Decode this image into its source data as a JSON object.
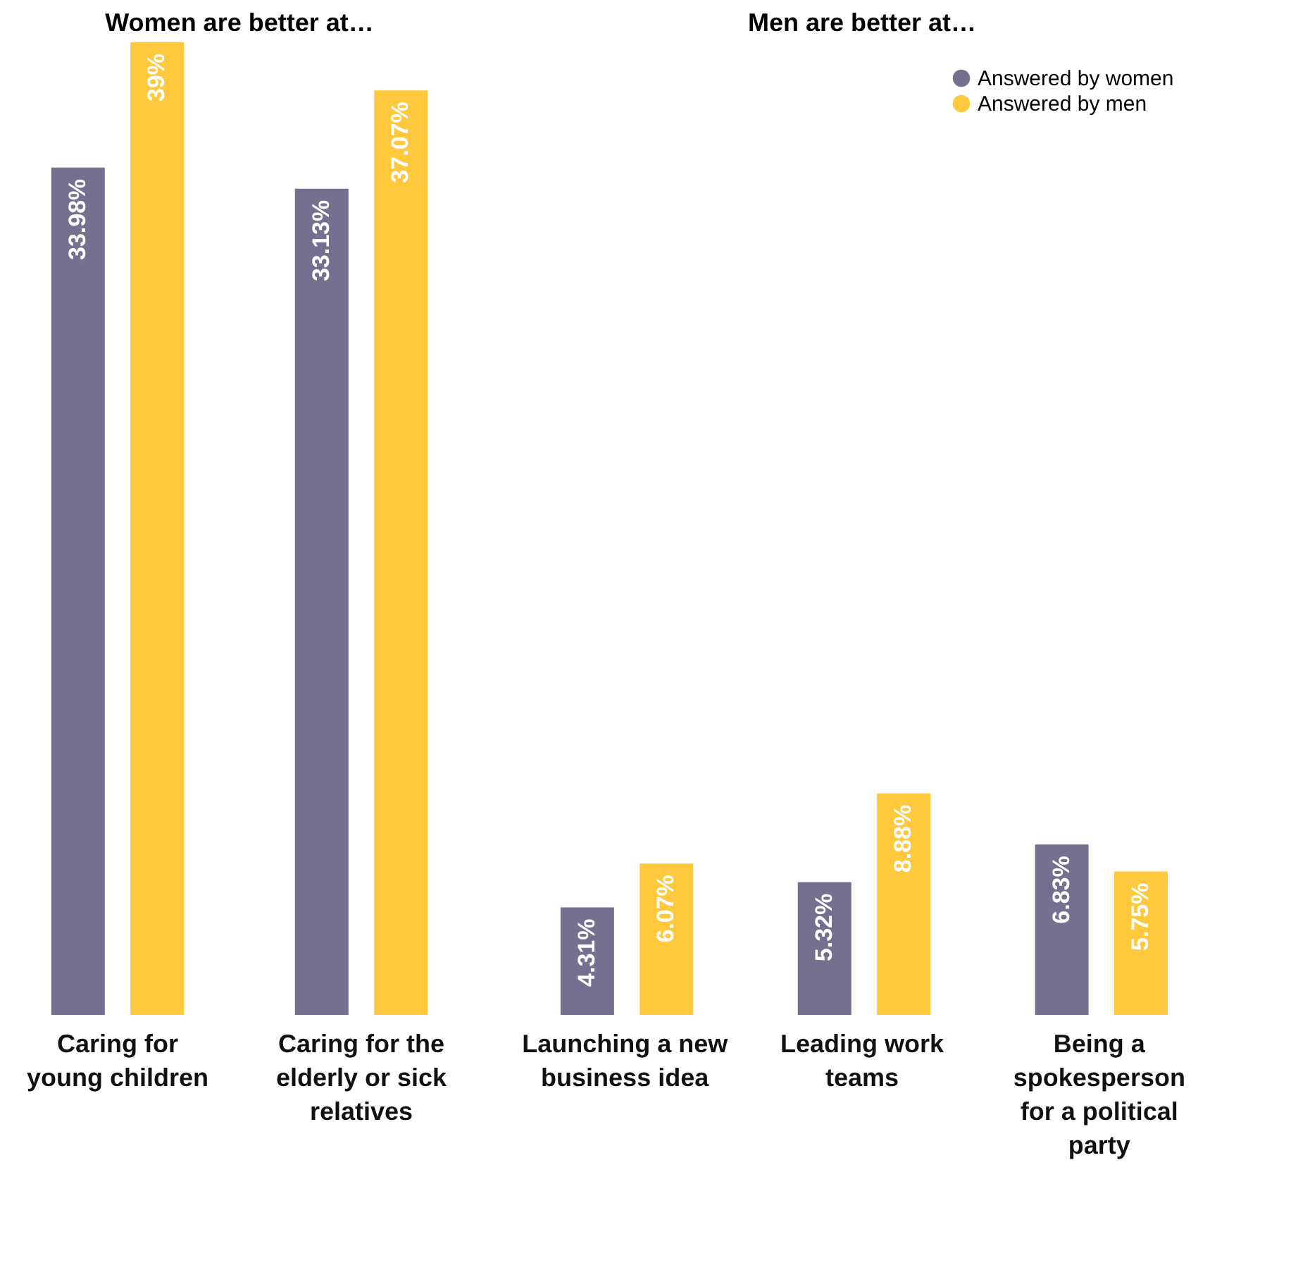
{
  "chart_data": [
    {
      "type": "bar",
      "title": "Women are better at…",
      "categories": [
        "Caring for young children",
        "Caring for the elderly or sick relatives"
      ],
      "series": [
        {
          "color": "#75708f",
          "values": [
            33.98,
            33.13
          ],
          "value_labels": [
            "33.98%",
            "33.13%"
          ]
        },
        {
          "color": "#ffc83d",
          "values": [
            39,
            37.07
          ],
          "value_labels": [
            "39%",
            "37.07%"
          ]
        }
      ]
    },
    {
      "type": "bar",
      "title": "Men are better at…",
      "categories": [
        "Launching a new business idea",
        "Leading work teams",
        "Being a spokesperson for a political party"
      ],
      "legend": "top right",
      "series": [
        {
          "name": "Answered by women",
          "color": "#75708f",
          "values": [
            4.31,
            5.32,
            6.83
          ],
          "value_labels": [
            "4.31%",
            "5.32%",
            "6.83%"
          ]
        },
        {
          "name": "Answered by men",
          "color": "#ffc83d",
          "values": [
            6.07,
            8.88,
            5.75
          ],
          "value_labels": [
            "6.07%",
            "8.88%",
            "5.75%"
          ]
        }
      ]
    }
  ]
}
